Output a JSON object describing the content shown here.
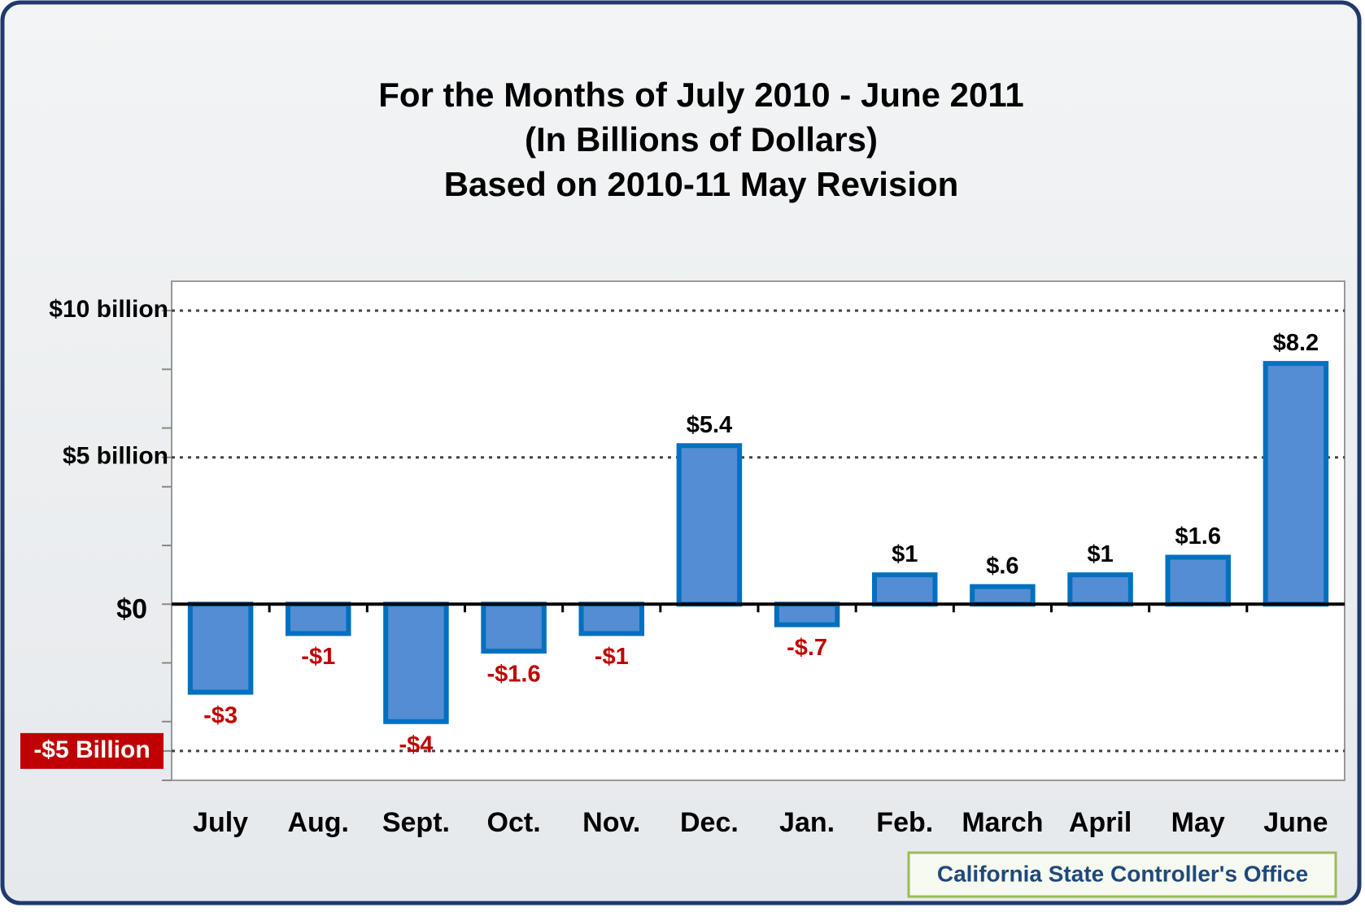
{
  "chart_data": {
    "type": "bar",
    "title": [
      "For the Months of July 2010 - June 2011",
      "(In Billions of Dollars)",
      "Based on 2010-11 May Revision"
    ],
    "categories": [
      "July",
      "Aug.",
      "Sept.",
      "Oct.",
      "Nov.",
      "Dec.",
      "Jan.",
      "Feb.",
      "March",
      "April",
      "May",
      "June"
    ],
    "values": [
      -3,
      -1,
      -4,
      -1.6,
      -1,
      5.4,
      -0.7,
      1,
      0.6,
      1,
      1.6,
      8.2
    ],
    "value_labels": [
      "-$3",
      "-$1",
      "-$4",
      "-$1.6",
      "-$1",
      "$5.4",
      "-$.7",
      "$1",
      "$.6",
      "$1",
      "$1.6",
      "$8.2"
    ],
    "color": "#548dd4",
    "ylim": [
      -6,
      11
    ],
    "yticks": [
      {
        "value": -5,
        "label": "-$5 Billion"
      },
      {
        "value": 0,
        "label": "$0"
      },
      {
        "value": 5,
        "label": "$5 billion"
      },
      {
        "value": 10,
        "label": "$10 billion"
      }
    ],
    "minor_yticks": [
      -6,
      -4,
      -2,
      2,
      4,
      6,
      8
    ],
    "grid": true,
    "source": "California State Controller's Office"
  }
}
